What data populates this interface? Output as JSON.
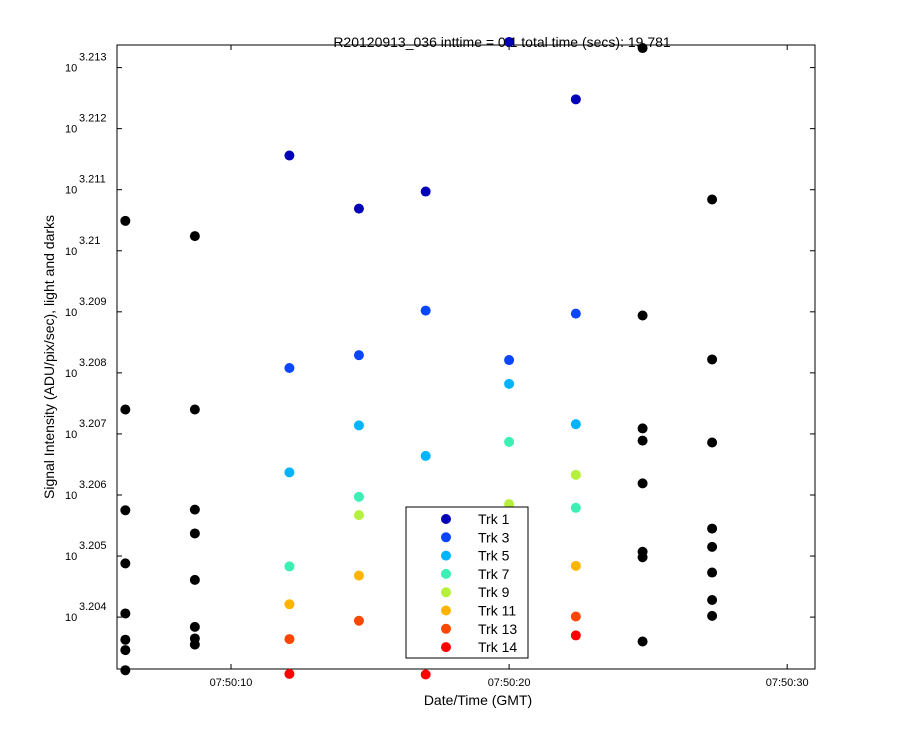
{
  "chart_data": {
    "type": "scatter",
    "title": "R20120913_036 inttime = 0.1 total time (secs): 19.781",
    "xlabel": "Date/Time (GMT)",
    "ylabel": "Signal Intensity (ADU/pix/sec), light and darks",
    "x_unit": "time of day",
    "xlim": [
      "07:50:05.9",
      "07:50:31.0"
    ],
    "ylim_exponent": [
      3.20315,
      3.21337
    ],
    "y_scale": "log",
    "y_tick_base": "10",
    "x_ticks": [
      "07:50:10",
      "07:50:20",
      "07:50:30"
    ],
    "y_ticks": [
      {
        "value": 3.204,
        "label": "3.204"
      },
      {
        "value": 3.205,
        "label": "3.205"
      },
      {
        "value": 3.206,
        "label": "3.206"
      },
      {
        "value": 3.207,
        "label": "3.207"
      },
      {
        "value": 3.208,
        "label": "3.208"
      },
      {
        "value": 3.209,
        "label": "3.209"
      },
      {
        "value": 3.21,
        "label": "3.21"
      },
      {
        "value": 3.211,
        "label": "3.211"
      },
      {
        "value": 3.212,
        "label": "3.212"
      },
      {
        "value": 3.213,
        "label": "3.213"
      }
    ],
    "grid": false,
    "legend_position": "bottom-center",
    "series": [
      {
        "name": "Trk 1",
        "color": "#0000b4",
        "points": [
          {
            "x": "07:50:20.0",
            "y_exponent": 3.21342
          },
          {
            "x": "07:50:22.4",
            "y_exponent": 3.21248
          },
          {
            "x": "07:50:14.6",
            "y_exponent": 3.21069
          },
          {
            "x": "07:50:17.0",
            "y_exponent": 3.21097
          },
          {
            "x": "07:50:12.1",
            "y_exponent": 3.21156
          }
        ]
      },
      {
        "name": "Trk 3",
        "color": "#0a46ff",
        "points": [
          {
            "x": "07:50:12.1",
            "y_exponent": 3.20808
          },
          {
            "x": "07:50:14.6",
            "y_exponent": 3.20829
          },
          {
            "x": "07:50:17.0",
            "y_exponent": 3.20902
          },
          {
            "x": "07:50:20.0",
            "y_exponent": 3.20821
          },
          {
            "x": "07:50:22.4",
            "y_exponent": 3.20897
          }
        ]
      },
      {
        "name": "Trk 5",
        "color": "#00b4ff",
        "points": [
          {
            "x": "07:50:12.1",
            "y_exponent": 3.20637
          },
          {
            "x": "07:50:14.6",
            "y_exponent": 3.20714
          },
          {
            "x": "07:50:17.0",
            "y_exponent": 3.20664
          },
          {
            "x": "07:50:20.0",
            "y_exponent": 3.20782
          },
          {
            "x": "07:50:22.4",
            "y_exponent": 3.20716
          }
        ]
      },
      {
        "name": "Trk 7",
        "color": "#3cf0b4",
        "points": [
          {
            "x": "07:50:12.1",
            "y_exponent": 3.20483
          },
          {
            "x": "07:50:14.6",
            "y_exponent": 3.20597
          },
          {
            "x": "07:50:20.0",
            "y_exponent": 3.20687
          },
          {
            "x": "07:50:22.4",
            "y_exponent": 3.20579
          }
        ]
      },
      {
        "name": "Trk 9",
        "color": "#b4f03c",
        "points": [
          {
            "x": "07:50:14.6",
            "y_exponent": 3.20567
          },
          {
            "x": "07:50:20.0",
            "y_exponent": 3.20585
          },
          {
            "x": "07:50:22.4",
            "y_exponent": 3.20633
          }
        ]
      },
      {
        "name": "Trk 11",
        "color": "#ffb400",
        "points": [
          {
            "x": "07:50:12.1",
            "y_exponent": 3.20421
          },
          {
            "x": "07:50:14.6",
            "y_exponent": 3.20468
          },
          {
            "x": "07:50:22.4",
            "y_exponent": 3.20484
          }
        ]
      },
      {
        "name": "Trk 13",
        "color": "#ff4600",
        "points": [
          {
            "x": "07:50:12.1",
            "y_exponent": 3.20364
          },
          {
            "x": "07:50:14.6",
            "y_exponent": 3.20394
          },
          {
            "x": "07:50:22.4",
            "y_exponent": 3.20401
          }
        ]
      },
      {
        "name": "Trk 14",
        "color": "#ff0000",
        "points": [
          {
            "x": "07:50:12.1",
            "y_exponent": 3.20307
          },
          {
            "x": "07:50:17.0",
            "y_exponent": 3.20306
          },
          {
            "x": "07:50:22.4",
            "y_exponent": 3.2037
          }
        ]
      },
      {
        "name": "",
        "color": "#000000",
        "points": [
          {
            "x": "07:50:06.2",
            "y_exponent": 3.21049
          },
          {
            "x": "07:50:06.2",
            "y_exponent": 3.2074
          },
          {
            "x": "07:50:06.2",
            "y_exponent": 3.20575
          },
          {
            "x": "07:50:06.2",
            "y_exponent": 3.20488
          },
          {
            "x": "07:50:06.2",
            "y_exponent": 3.20406
          },
          {
            "x": "07:50:06.2",
            "y_exponent": 3.20363
          },
          {
            "x": "07:50:06.2",
            "y_exponent": 3.20346
          },
          {
            "x": "07:50:06.2",
            "y_exponent": 3.20313
          },
          {
            "x": "07:50:08.7",
            "y_exponent": 3.21024
          },
          {
            "x": "07:50:08.7",
            "y_exponent": 3.2074
          },
          {
            "x": "07:50:08.7",
            "y_exponent": 3.20576
          },
          {
            "x": "07:50:08.7",
            "y_exponent": 3.20537
          },
          {
            "x": "07:50:08.7",
            "y_exponent": 3.20461
          },
          {
            "x": "07:50:08.7",
            "y_exponent": 3.20384
          },
          {
            "x": "07:50:08.7",
            "y_exponent": 3.20365
          },
          {
            "x": "07:50:08.7",
            "y_exponent": 3.20355
          },
          {
            "x": "07:50:24.8",
            "y_exponent": 3.21332
          },
          {
            "x": "07:50:24.8",
            "y_exponent": 3.20894
          },
          {
            "x": "07:50:24.8",
            "y_exponent": 3.20709
          },
          {
            "x": "07:50:24.8",
            "y_exponent": 3.20689
          },
          {
            "x": "07:50:24.8",
            "y_exponent": 3.20619
          },
          {
            "x": "07:50:24.8",
            "y_exponent": 3.20507
          },
          {
            "x": "07:50:24.8",
            "y_exponent": 3.20498
          },
          {
            "x": "07:50:24.8",
            "y_exponent": 3.2036
          },
          {
            "x": "07:50:27.3",
            "y_exponent": 3.21084
          },
          {
            "x": "07:50:27.3",
            "y_exponent": 3.20822
          },
          {
            "x": "07:50:27.3",
            "y_exponent": 3.20686
          },
          {
            "x": "07:50:27.3",
            "y_exponent": 3.20545
          },
          {
            "x": "07:50:27.3",
            "y_exponent": 3.20515
          },
          {
            "x": "07:50:27.3",
            "y_exponent": 3.20473
          },
          {
            "x": "07:50:27.3",
            "y_exponent": 3.20428
          },
          {
            "x": "07:50:27.3",
            "y_exponent": 3.20402
          }
        ]
      }
    ]
  }
}
